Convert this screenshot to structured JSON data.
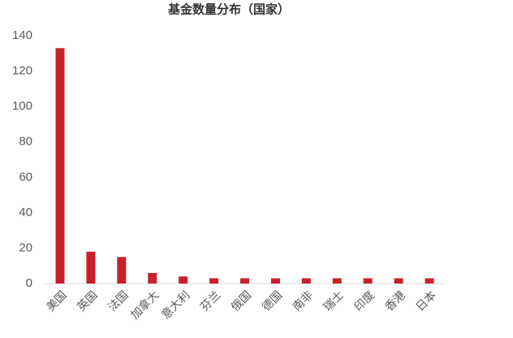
{
  "chart_data": {
    "type": "bar",
    "title": "基金数量分布（国家）",
    "categories": [
      "美国",
      "英国",
      "法国",
      "加拿大",
      "意大利",
      "芬兰",
      "俄国",
      "德国",
      "南非",
      "瑞士",
      "印度",
      "香港",
      "日本"
    ],
    "values": [
      133,
      18,
      15,
      6,
      4,
      3,
      3,
      3,
      3,
      3,
      3,
      3,
      3
    ],
    "color": "#c9212b",
    "ylim": [
      0,
      140
    ],
    "yticks": [
      0,
      20,
      40,
      60,
      80,
      100,
      120,
      140
    ],
    "grid": false
  }
}
